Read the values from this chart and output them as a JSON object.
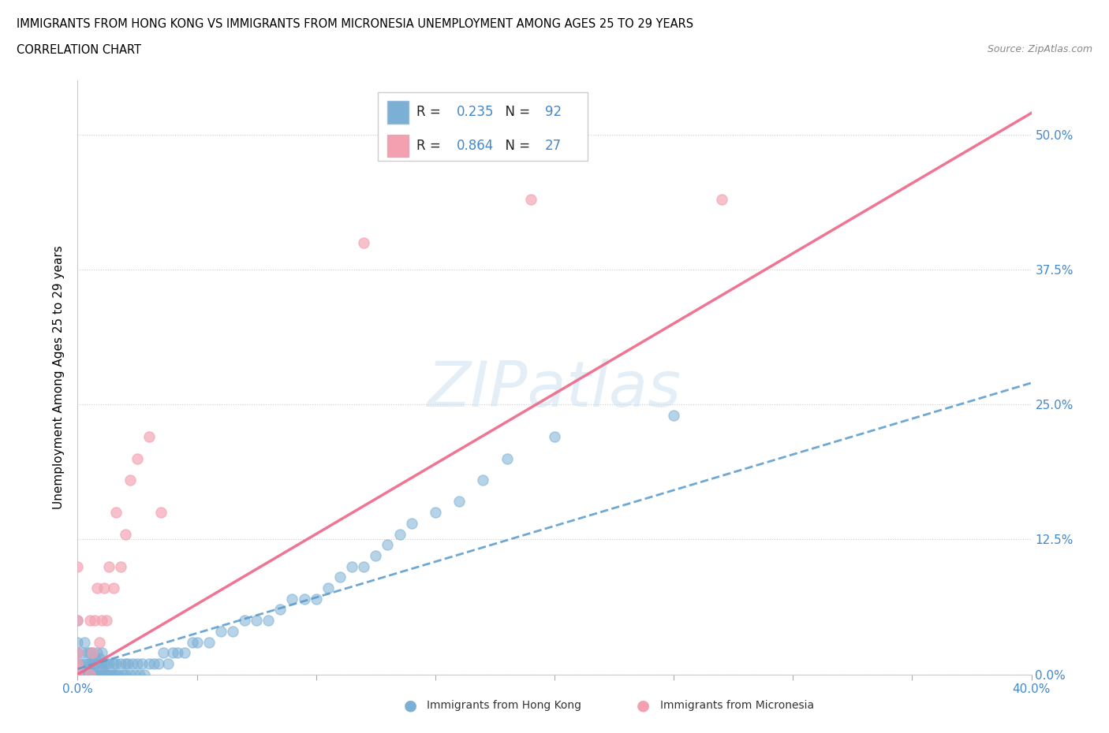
{
  "title_line1": "IMMIGRANTS FROM HONG KONG VS IMMIGRANTS FROM MICRONESIA UNEMPLOYMENT AMONG AGES 25 TO 29 YEARS",
  "title_line2": "CORRELATION CHART",
  "source_text": "Source: ZipAtlas.com",
  "ylabel": "Unemployment Among Ages 25 to 29 years",
  "xlim": [
    0.0,
    0.4
  ],
  "ylim": [
    0.0,
    0.55
  ],
  "x_tick_positions": [
    0.0,
    0.05,
    0.1,
    0.15,
    0.2,
    0.25,
    0.3,
    0.35,
    0.4
  ],
  "x_tick_labels": [
    "0.0%",
    "",
    "",
    "",
    "",
    "",
    "",
    "",
    "40.0%"
  ],
  "y_ticks_right": [
    0.0,
    0.125,
    0.25,
    0.375,
    0.5
  ],
  "y_tick_labels_right": [
    "0.0%",
    "12.5%",
    "25.0%",
    "37.5%",
    "50.0%"
  ],
  "hk_color": "#7bafd4",
  "mic_color": "#f4a0b0",
  "hk_trend_color": "#5599cc",
  "mic_trend_color": "#ee6688",
  "watermark": "ZIPatlas",
  "legend_R_hk": "0.235",
  "legend_N_hk": "92",
  "legend_R_mic": "0.864",
  "legend_N_mic": "27",
  "hk_x": [
    0.0,
    0.0,
    0.0,
    0.0,
    0.0,
    0.001,
    0.001,
    0.002,
    0.002,
    0.003,
    0.003,
    0.003,
    0.004,
    0.004,
    0.004,
    0.005,
    0.005,
    0.005,
    0.005,
    0.006,
    0.006,
    0.006,
    0.007,
    0.007,
    0.007,
    0.008,
    0.008,
    0.008,
    0.009,
    0.009,
    0.01,
    0.01,
    0.01,
    0.01,
    0.011,
    0.011,
    0.012,
    0.012,
    0.013,
    0.013,
    0.014,
    0.015,
    0.015,
    0.016,
    0.016,
    0.017,
    0.018,
    0.019,
    0.02,
    0.02,
    0.021,
    0.022,
    0.023,
    0.024,
    0.025,
    0.026,
    0.027,
    0.028,
    0.03,
    0.032,
    0.034,
    0.036,
    0.038,
    0.04,
    0.042,
    0.045,
    0.048,
    0.05,
    0.055,
    0.06,
    0.065,
    0.07,
    0.075,
    0.08,
    0.085,
    0.09,
    0.095,
    0.1,
    0.105,
    0.11,
    0.115,
    0.12,
    0.125,
    0.13,
    0.135,
    0.14,
    0.15,
    0.16,
    0.17,
    0.18,
    0.2,
    0.25
  ],
  "hk_y": [
    0.0,
    0.01,
    0.02,
    0.03,
    0.05,
    0.0,
    0.01,
    0.0,
    0.02,
    0.0,
    0.01,
    0.03,
    0.0,
    0.01,
    0.02,
    0.0,
    0.005,
    0.01,
    0.02,
    0.0,
    0.01,
    0.02,
    0.0,
    0.01,
    0.015,
    0.0,
    0.01,
    0.02,
    0.0,
    0.015,
    0.0,
    0.005,
    0.01,
    0.02,
    0.0,
    0.01,
    0.0,
    0.01,
    0.0,
    0.01,
    0.0,
    0.0,
    0.01,
    0.0,
    0.01,
    0.0,
    0.01,
    0.0,
    0.0,
    0.01,
    0.01,
    0.0,
    0.01,
    0.0,
    0.01,
    0.0,
    0.01,
    0.0,
    0.01,
    0.01,
    0.01,
    0.02,
    0.01,
    0.02,
    0.02,
    0.02,
    0.03,
    0.03,
    0.03,
    0.04,
    0.04,
    0.05,
    0.05,
    0.05,
    0.06,
    0.07,
    0.07,
    0.07,
    0.08,
    0.09,
    0.1,
    0.1,
    0.11,
    0.12,
    0.13,
    0.14,
    0.15,
    0.16,
    0.18,
    0.2,
    0.22,
    0.24
  ],
  "mic_x": [
    0.0,
    0.0,
    0.0,
    0.0,
    0.0,
    0.0,
    0.005,
    0.005,
    0.006,
    0.007,
    0.008,
    0.009,
    0.01,
    0.011,
    0.012,
    0.013,
    0.015,
    0.016,
    0.018,
    0.02,
    0.022,
    0.025,
    0.03,
    0.035,
    0.12,
    0.19,
    0.27
  ],
  "mic_y": [
    0.0,
    0.005,
    0.01,
    0.02,
    0.05,
    0.1,
    0.0,
    0.05,
    0.02,
    0.05,
    0.08,
    0.03,
    0.05,
    0.08,
    0.05,
    0.1,
    0.08,
    0.15,
    0.1,
    0.13,
    0.18,
    0.2,
    0.22,
    0.15,
    0.4,
    0.44,
    0.44
  ],
  "hk_trend_y0": 0.005,
  "hk_trend_y1": 0.27,
  "mic_trend_y0": 0.0,
  "mic_trend_y1": 0.52
}
